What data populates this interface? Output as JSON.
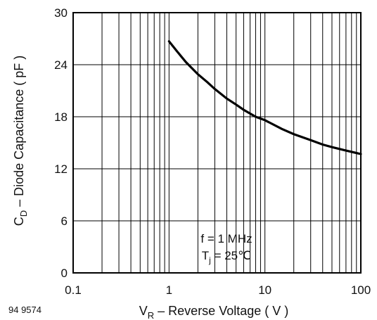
{
  "figure_id": "94 9574",
  "chart_data": {
    "type": "line",
    "xscale": "log",
    "xlim": [
      0.1,
      100
    ],
    "ylim": [
      0,
      30
    ],
    "grid": true,
    "x_ticks": [
      0.1,
      1,
      10,
      100
    ],
    "x_tick_labels": [
      "0.1",
      "1",
      "10",
      "100"
    ],
    "y_ticks": [
      0,
      6,
      12,
      18,
      24,
      30
    ],
    "y_tick_labels": [
      "0",
      "6",
      "12",
      "18",
      "24",
      "30"
    ],
    "xlabel": {
      "main": "V",
      "sub": "R",
      "rest": " – Reverse Voltage ( V )"
    },
    "ylabel": {
      "main": "C",
      "sub": "D",
      "rest": " – Diode Capacitance ( pF )"
    },
    "annotation": {
      "line1": "f = 1 MHz",
      "line2": {
        "main": "T",
        "sub": "j",
        "rest": " = 25℃"
      }
    },
    "series": [
      {
        "x": [
          1,
          1.2,
          1.5,
          2,
          2.5,
          3,
          4,
          5,
          6,
          8,
          10,
          15,
          20,
          30,
          40,
          50,
          70,
          100
        ],
        "y": [
          26.7,
          25.6,
          24.3,
          22.9,
          22.0,
          21.2,
          20.1,
          19.4,
          18.8,
          18.0,
          17.6,
          16.6,
          16.0,
          15.3,
          14.8,
          14.5,
          14.1,
          13.7
        ]
      }
    ],
    "line_color": "#000000"
  }
}
